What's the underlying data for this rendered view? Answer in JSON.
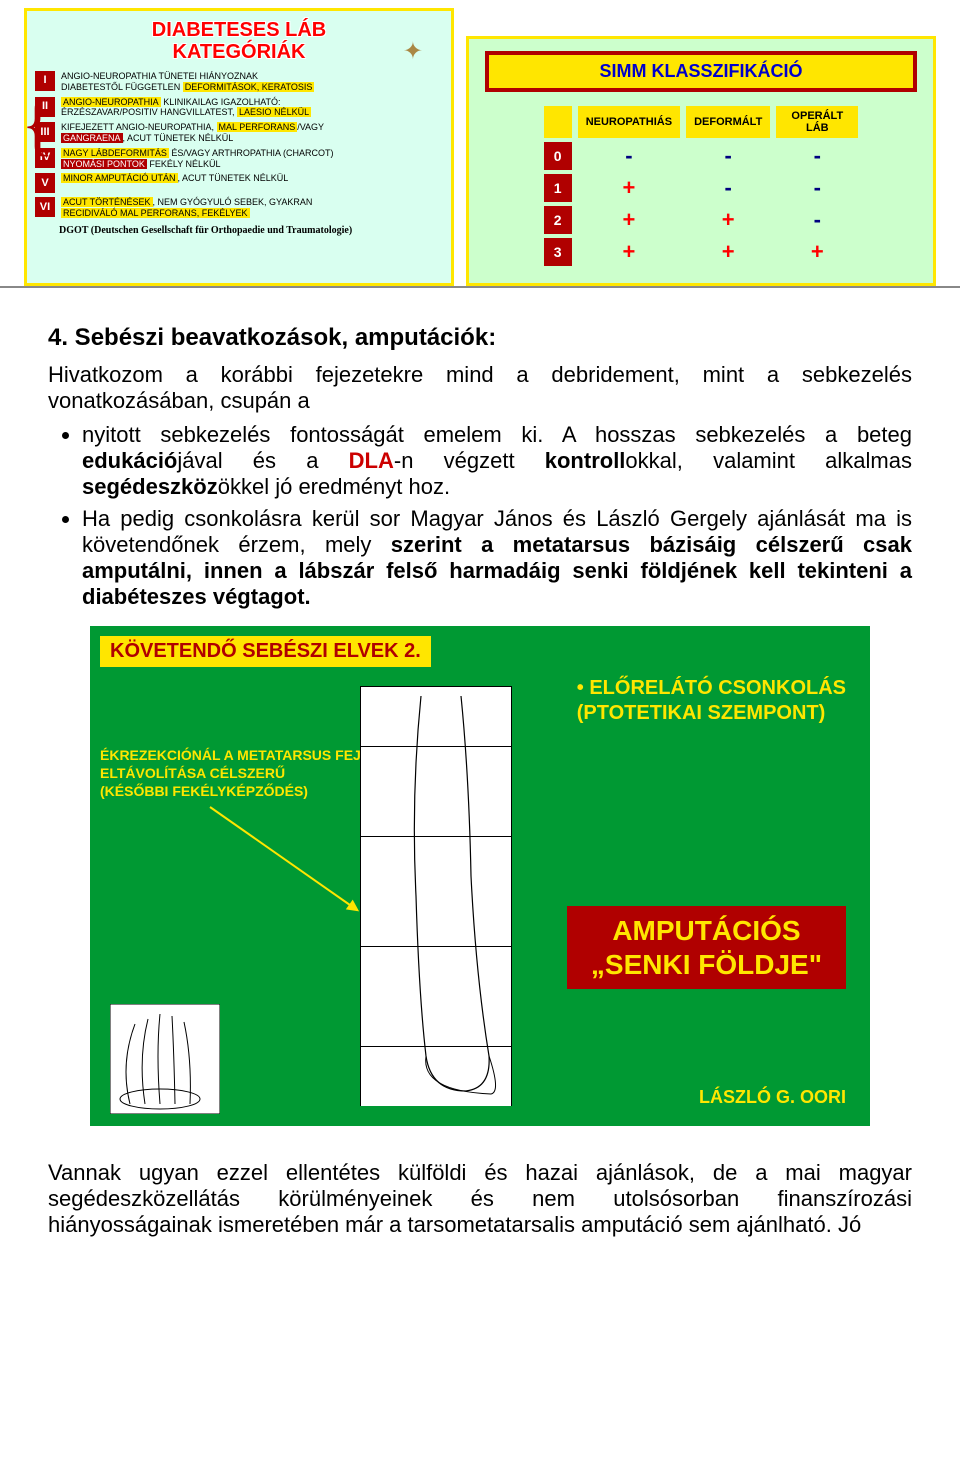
{
  "leftPanel": {
    "titleLines": [
      "DIABETESES LÁB",
      "KATEGÓRIÁK"
    ],
    "rows": [
      {
        "rn": "I",
        "html": "ANGIO-NEUROPATHIA TÜNETEI HIÁNYOZNAK<br>DIABETESTŐL FÜGGETLEN <span class='hl'>DEFORMITÁSOK, KERATOSIS</span>"
      },
      {
        "rn": "II",
        "html": "<span class='hl'>ANGIO-NEUROPATHIA</span> KLINIKAILAG IGAZOLHATÓ:<br>ÉRZÉSZAVAR/POSITIV HANGVILLATEST, <span class='hl'>LAESIO NÉLKÜL</span>"
      },
      {
        "rn": "III",
        "html": "KIFEJEZETT ANGIO-NEUROPATHIA, <span class='hl'>MAL PERFORANS</span>/VAGY<br><span class='hlr'>GANGRAENA</span>, ACUT TÜNETEK NÉLKÜL"
      },
      {
        "rn": "IV",
        "html": "<span class='hl'>NAGY LÁBDEFORMITÁS</span> ÉS/VAGY ARTHROPATHIA (CHARCOT)<br><span class='hlr'>NYOMÁSI PONTOK</span> FEKÉLY NÉLKÜL"
      },
      {
        "rn": "V",
        "html": "<span class='hl'>MINOR AMPUTÁCIÓ UTÁN</span>, ACUT TÜNETEK NÉLKÜL"
      },
      {
        "rn": "VI",
        "html": "<span class='hl'>ACUT TÖRTÉNÉSEK</span>, NEM GYÓGYULÓ SEBEK, GYAKRAN<br><span class='hl'>RECIDIVÁLÓ MAL PERFORANS, FEKÉLYEK</span>"
      }
    ],
    "footnote": "DGOT (Deutschen Gesellschaft für Orthopaedie und Traumatologie)",
    "colors": {
      "bg": "#d9fff0",
      "border": "#ffe600",
      "rnBg": "#b00000",
      "title": "#ff0000",
      "highlight": "#ffe600",
      "highlightRed": "#b00000"
    }
  },
  "rightPanel": {
    "title": "SIMM KLASSZIFIKÁCIÓ",
    "colHeaders": [
      "NEUROPATHIÁS",
      "DEFORMÁLT",
      "OPERÁLT  LÁB"
    ],
    "rowHeaders": [
      "0",
      "1",
      "2",
      "3"
    ],
    "grid": [
      [
        "-",
        "-",
        "-"
      ],
      [
        "+",
        "-",
        "-"
      ],
      [
        "+",
        "+",
        "-"
      ],
      [
        "+",
        "+",
        "+"
      ]
    ],
    "colors": {
      "bg": "#ccffcc",
      "border": "#ffe600",
      "titleBox": "#ffe600",
      "titleBorder": "#b00000",
      "titleText": "#0000cc",
      "headerBg": "#ffe600",
      "rowHeadBg": "#b00000",
      "plus": "#ff0000",
      "minus": "#000080"
    }
  },
  "main": {
    "heading": "4. Sebészi beavatkozások, amputációk:",
    "intro": "Hivatkozom a korábbi fejezetekre mind a debridement, mint a sebkezelés vonatkozásában, csupán a",
    "bullets": [
      {
        "html": "nyitott sebkezelés fontosságát emelem ki. A hosszas sebkezelés a beteg <b>edukáció</b>jával és a <span class='red'><b>DLA</b></span>-n végzett <b>kontroll</b>okkal, valamint alkalmas <b>segédeszköz</b>ökkel jó eredményt hoz."
      },
      {
        "html": "Ha pedig csonkolásra kerül sor  Magyar János és László Gergely ajánlását ma is követendőnek érzem, mely <b>szerint a metatarsus bázisáig célszerű csak amputálni, innen a lábszár felső harmadáig senki földjének kell tekinteni a diabéteszes végtagot.</b>"
      }
    ]
  },
  "greenFigure": {
    "title": "KÖVETENDŐ SEBÉSZI ELVEK 2.",
    "rightTop": "• ELŐRELÁTÓ CSONKOLÁS\n   (PTOTETIKAI SZEMPONT)",
    "leftTxt": "ÉKREZEKCIÓNÁL A METATARSUS FEJ\nELTÁVOLÍTÁSA CÉLSZERŰ\n(KÉSŐBBI FEKÉLYKÉPZŐDÉS)",
    "redBox": "AMPUTÁCIÓS\n„SENKI FÖLDJE\"",
    "author": "LÁSZLÓ G. OORI",
    "colors": {
      "bg": "#009933",
      "titleBg": "#ffe600",
      "titleText": "#b00000",
      "text": "#ffe600",
      "redBoxBg": "#b00000",
      "arrow": "#ffe600"
    }
  },
  "bottom": {
    "text": "Vannak ugyan ezzel ellentétes külföldi és hazai ajánlások, de a mai magyar segédeszközellátás körülményeinek és nem utolsósorban finanszírozási hiányosságainak ismeretében már a tarsometatarsalis amputáció sem ajánlható. Jó"
  }
}
